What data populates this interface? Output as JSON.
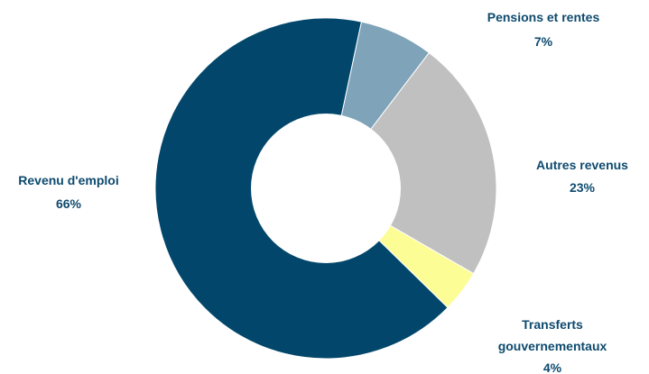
{
  "chart_data": {
    "type": "pie",
    "donut": true,
    "title": "",
    "slices": [
      {
        "name": "Pensions et rentes",
        "value": 7,
        "value_label": "7%",
        "color": "#7fa3b8"
      },
      {
        "name": "Autres revenus",
        "value": 23,
        "value_label": "23%",
        "color": "#c0c0c0"
      },
      {
        "name": "Transferts gouvernementaux",
        "value": 4,
        "value_label": "4%",
        "color": "#fdfd96"
      },
      {
        "name": "Revenu d'emploi",
        "value": 66,
        "value_label": "66%",
        "color": "#02476b"
      }
    ],
    "start": "12 o'clock, clockwise",
    "label_color": "#0d4a6e"
  }
}
